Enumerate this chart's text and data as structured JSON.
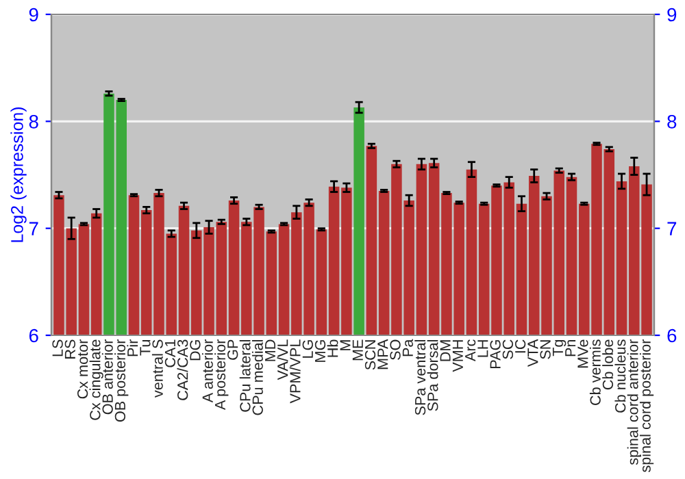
{
  "chart_data": {
    "type": "bar",
    "ylabel": "Log2 (expression)",
    "categories": [
      "LS",
      "RS",
      "Cx motor",
      "Cx cingulate",
      "OB anterior",
      "OB posterior",
      "Pir",
      "Tu",
      "ventral S",
      "CA1",
      "CA2/CA3",
      "DG",
      "A anterior",
      "A posterior",
      "GP",
      "CPu lateral",
      "CPu medial",
      "MD",
      "VA/VL",
      "VPM/VPL",
      "LG",
      "MG",
      "Hb",
      "M",
      "ME",
      "SCN",
      "MPA",
      "SO",
      "Pa",
      "SPa ventral",
      "SPa dorsal",
      "DM",
      "VMH",
      "Arc",
      "LH",
      "PAG",
      "SC",
      "IC",
      "VTA",
      "SN",
      "Tg",
      "Pn",
      "MVe",
      "Cb vermis",
      "Cb lobe",
      "Cb nucleus",
      "spinal cord anterior",
      "spinal cord posterior"
    ],
    "values": [
      7.31,
      7.0,
      7.04,
      7.14,
      8.26,
      8.2,
      7.31,
      7.17,
      7.33,
      6.95,
      7.21,
      6.98,
      7.01,
      7.06,
      7.26,
      7.06,
      7.2,
      6.97,
      7.04,
      7.15,
      7.24,
      6.99,
      7.39,
      7.38,
      8.13,
      7.77,
      7.35,
      7.6,
      7.26,
      7.6,
      7.61,
      7.33,
      7.24,
      7.55,
      7.23,
      7.4,
      7.43,
      7.23,
      7.49,
      7.3,
      7.54,
      7.48,
      7.23,
      7.79,
      7.74,
      7.44,
      7.58,
      7.41
    ],
    "errors": [
      0.03,
      0.1,
      0.01,
      0.04,
      0.02,
      0.01,
      0.01,
      0.03,
      0.03,
      0.03,
      0.03,
      0.07,
      0.06,
      0.02,
      0.03,
      0.03,
      0.02,
      0.01,
      0.01,
      0.06,
      0.03,
      0.01,
      0.05,
      0.04,
      0.05,
      0.02,
      0.01,
      0.03,
      0.05,
      0.05,
      0.04,
      0.01,
      0.01,
      0.07,
      0.01,
      0.01,
      0.05,
      0.07,
      0.06,
      0.03,
      0.02,
      0.03,
      0.01,
      0.01,
      0.02,
      0.07,
      0.08,
      0.1
    ],
    "colors": [
      "#b83232",
      "#b83232",
      "#b83232",
      "#b83232",
      "#3caa3c",
      "#3caa3c",
      "#b83232",
      "#b83232",
      "#b83232",
      "#b83232",
      "#b83232",
      "#b83232",
      "#b83232",
      "#b83232",
      "#b83232",
      "#b83232",
      "#b83232",
      "#b83232",
      "#b83232",
      "#b83232",
      "#b83232",
      "#b83232",
      "#b83232",
      "#b83232",
      "#3caa3c",
      "#b83232",
      "#b83232",
      "#b83232",
      "#b83232",
      "#b83232",
      "#b83232",
      "#b83232",
      "#b83232",
      "#b83232",
      "#b83232",
      "#b83232",
      "#b83232",
      "#b83232",
      "#b83232",
      "#b83232",
      "#b83232",
      "#b83232",
      "#b83232",
      "#b83232",
      "#b83232",
      "#b83232",
      "#b83232",
      "#b83232"
    ],
    "ylim": [
      6,
      9
    ],
    "yticks": [
      6,
      7,
      8,
      9
    ],
    "y2lim": [
      6,
      9
    ],
    "y2ticks": [
      6,
      7,
      8,
      9
    ],
    "grid": "y"
  }
}
